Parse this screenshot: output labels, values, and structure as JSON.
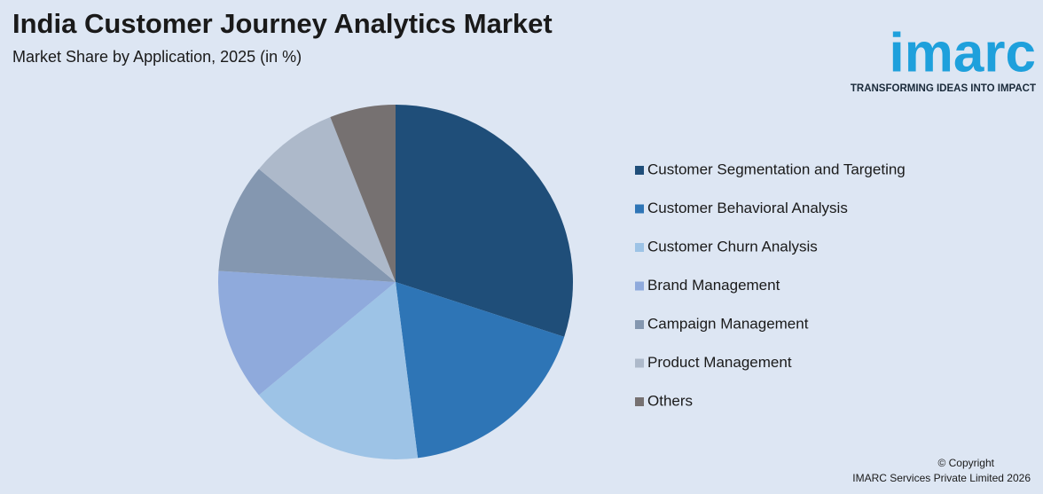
{
  "chart_data": {
    "type": "pie",
    "title": "India Customer Journey Analytics Market",
    "subtitle": "Market Share by Application, 2025 (in %)",
    "categories": [
      "Customer Segmentation and Targeting",
      "Customer Behavioral Analysis",
      "Customer Churn Analysis",
      "Brand Management",
      "Campaign Management",
      "Product Management",
      "Others"
    ],
    "values": [
      30,
      18,
      16,
      12,
      10,
      8,
      6
    ],
    "colors": [
      "#1f4e79",
      "#2e75b6",
      "#9dc3e6",
      "#8faadc",
      "#8497b0",
      "#adb9ca",
      "#767171"
    ],
    "legend": "right"
  },
  "logo": {
    "name": "imarc",
    "tagline": "TRANSFORMING IDEAS INTO IMPACT"
  },
  "footer": {
    "copyright": "© Copyright",
    "company": "IMARC Services Private Limited 2026"
  }
}
